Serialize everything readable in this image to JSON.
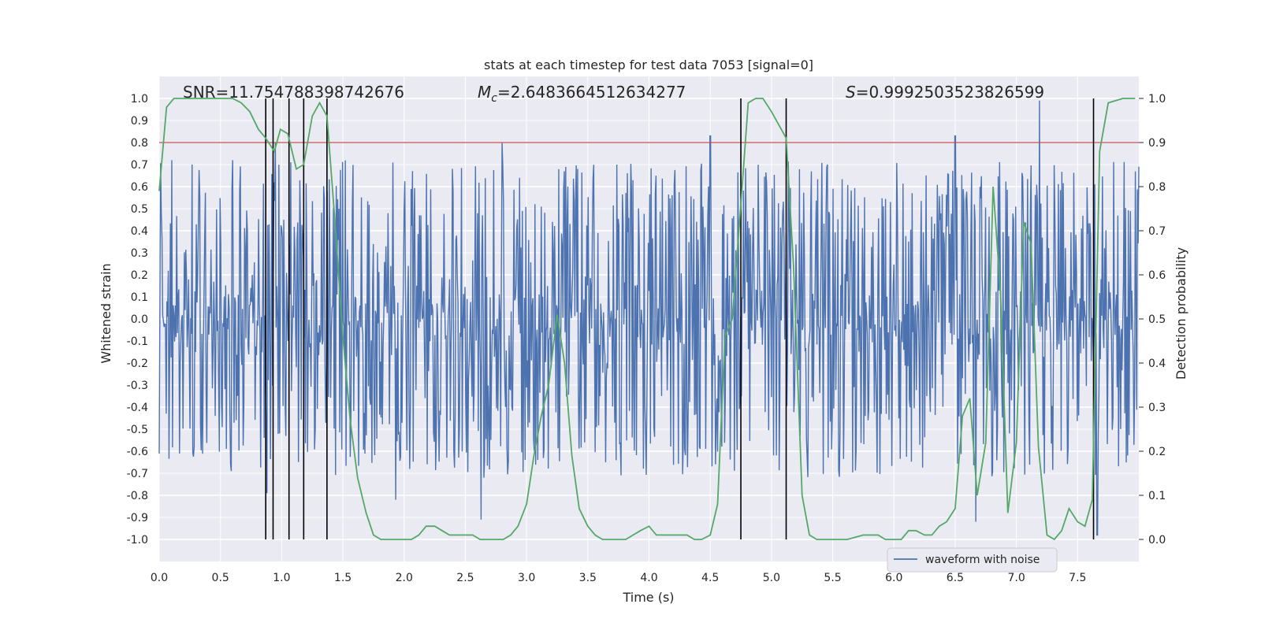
{
  "colors": {
    "axes_bg": "#EAEAF2",
    "grid": "#FFFFFF",
    "waveform": "#4C72B0",
    "probability": "#55A868",
    "threshold": "#C44E52",
    "marker": "#000000",
    "text": "#262626"
  },
  "chart_data": {
    "type": "line",
    "title": "stats at each timestep for test data 7053 [signal=0]",
    "xlabel": "Time (s)",
    "ylabel": "Whitened strain",
    "y2label": "Detection probability",
    "xlim": [
      0,
      8
    ],
    "ylim": [
      -1.1,
      1.1
    ],
    "y2lim": [
      -0.05,
      1.05
    ],
    "grid": true,
    "x_ticks": [
      "0.0",
      "0.5",
      "1.0",
      "1.5",
      "2.0",
      "2.5",
      "3.0",
      "3.5",
      "4.0",
      "4.5",
      "5.0",
      "5.5",
      "6.0",
      "6.5",
      "7.0",
      "7.5"
    ],
    "y_ticks": [
      "1.0",
      "0.9",
      "0.8",
      "0.7",
      "0.6",
      "0.5",
      "0.4",
      "0.3",
      "0.2",
      "0.1",
      "0.0",
      "-0.1",
      "-0.2",
      "-0.3",
      "-0.4",
      "-0.5",
      "-0.6",
      "-0.7",
      "-0.8",
      "-0.9",
      "-1.0"
    ],
    "y2_ticks": [
      "1.0",
      "0.9",
      "0.8",
      "0.7",
      "0.6",
      "0.5",
      "0.4",
      "0.3",
      "0.2",
      "0.1",
      "0.0"
    ],
    "annotations": {
      "snr": "SNR=11.754788398742676",
      "chirp_mass_symbol": "M",
      "chirp_mass_sub": "c",
      "chirp_mass_value": "=2.6483664512634277",
      "s_symbol": "S",
      "s_value": "=0.9992503523826599"
    },
    "legend": {
      "position": "lower-right",
      "entries": [
        "waveform with noise"
      ]
    },
    "threshold": {
      "axis": "right",
      "value": 0.9
    },
    "vertical_markers": [
      0.87,
      0.93,
      1.06,
      1.18,
      1.37,
      4.75,
      5.12,
      7.63
    ],
    "series": [
      {
        "name": "waveform with noise",
        "axis": "left",
        "kind": "noise-waveform",
        "envelope": 0.42,
        "peak_spikes": [
          {
            "x": 0.1,
            "y": 0.72
          },
          {
            "x": 0.6,
            "y": 0.72
          },
          {
            "x": 0.95,
            "y": 0.8
          },
          {
            "x": 2.8,
            "y": 0.8
          },
          {
            "x": 4.5,
            "y": 0.83
          },
          {
            "x": 6.5,
            "y": 0.83
          },
          {
            "x": 7.19,
            "y": 0.99
          },
          {
            "x": 0.88,
            "y": -0.79
          },
          {
            "x": 1.93,
            "y": -0.82
          },
          {
            "x": 2.63,
            "y": -0.91
          },
          {
            "x": 6.67,
            "y": -0.92
          },
          {
            "x": 7.66,
            "y": -0.98
          }
        ]
      },
      {
        "name": "",
        "axis": "right",
        "x": [
          0.0,
          0.06,
          0.12,
          0.2,
          0.3,
          0.4,
          0.5,
          0.6,
          0.67,
          0.74,
          0.81,
          0.87,
          0.94,
          0.99,
          1.05,
          1.12,
          1.18,
          1.25,
          1.31,
          1.37,
          1.43,
          1.5,
          1.56,
          1.62,
          1.69,
          1.75,
          1.81,
          1.87,
          1.93,
          2.0,
          2.06,
          2.12,
          2.18,
          2.25,
          2.31,
          2.37,
          2.43,
          2.5,
          2.56,
          2.62,
          2.68,
          2.75,
          2.81,
          2.87,
          2.93,
          3.0,
          3.06,
          3.12,
          3.18,
          3.25,
          3.31,
          3.37,
          3.43,
          3.5,
          3.56,
          3.62,
          3.68,
          3.75,
          3.81,
          3.87,
          3.93,
          4.0,
          4.06,
          4.12,
          4.18,
          4.25,
          4.31,
          4.37,
          4.43,
          4.5,
          4.56,
          4.62,
          4.68,
          4.75,
          4.81,
          4.87,
          4.93,
          5.0,
          5.06,
          5.12,
          5.18,
          5.25,
          5.31,
          5.37,
          5.5,
          5.62,
          5.75,
          5.87,
          5.93,
          6.0,
          6.06,
          6.12,
          6.18,
          6.25,
          6.31,
          6.37,
          6.43,
          6.5,
          6.56,
          6.62,
          6.68,
          6.75,
          6.81,
          6.87,
          6.93,
          7.0,
          7.06,
          7.12,
          7.18,
          7.25,
          7.31,
          7.37,
          7.43,
          7.5,
          7.56,
          7.62,
          7.68,
          7.75,
          7.87,
          7.97
        ],
        "values": [
          0.79,
          0.98,
          1.0,
          1.0,
          1.0,
          1.0,
          1.0,
          1.0,
          0.99,
          0.97,
          0.93,
          0.91,
          0.88,
          0.93,
          0.92,
          0.84,
          0.85,
          0.96,
          0.99,
          0.96,
          0.74,
          0.46,
          0.27,
          0.14,
          0.06,
          0.01,
          0.0,
          0.0,
          0.0,
          0.0,
          0.0,
          0.01,
          0.03,
          0.03,
          0.02,
          0.01,
          0.01,
          0.01,
          0.01,
          0.0,
          0.0,
          0.0,
          0.0,
          0.01,
          0.03,
          0.08,
          0.19,
          0.28,
          0.35,
          0.51,
          0.4,
          0.19,
          0.07,
          0.03,
          0.01,
          0.0,
          0.0,
          0.0,
          0.0,
          0.01,
          0.02,
          0.03,
          0.01,
          0.01,
          0.01,
          0.01,
          0.01,
          0.0,
          0.0,
          0.01,
          0.08,
          0.46,
          0.5,
          0.76,
          0.99,
          1.0,
          1.0,
          0.97,
          0.94,
          0.91,
          0.62,
          0.1,
          0.01,
          0.0,
          0.0,
          0.0,
          0.01,
          0.01,
          0.0,
          0.0,
          0.0,
          0.02,
          0.02,
          0.01,
          0.01,
          0.03,
          0.04,
          0.07,
          0.28,
          0.32,
          0.1,
          0.22,
          0.8,
          0.56,
          0.06,
          0.22,
          0.72,
          0.67,
          0.21,
          0.01,
          0.0,
          0.02,
          0.07,
          0.04,
          0.03,
          0.09,
          0.88,
          0.99,
          1.0,
          1.0
        ]
      }
    ]
  }
}
